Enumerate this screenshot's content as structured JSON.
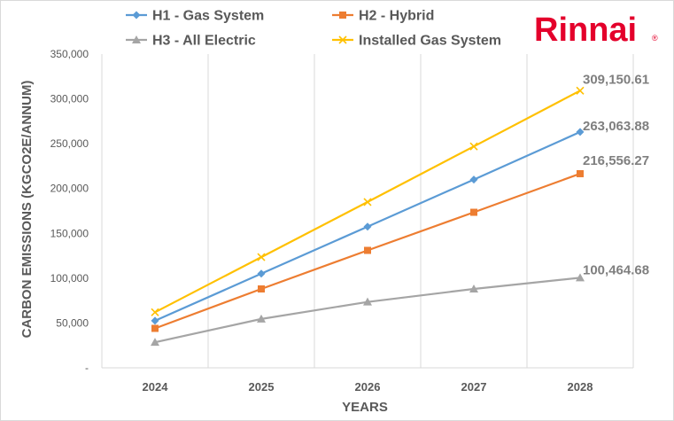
{
  "brand": {
    "logo_text": "Rinnai",
    "logo_mark": "®",
    "color": "#e4002b"
  },
  "chart_data": {
    "type": "line",
    "title": "",
    "xlabel": "YEARS",
    "ylabel": "CARBON EMISSIONS (KGCO2E/ANNUM)",
    "categories": [
      "2024",
      "2025",
      "2026",
      "2027",
      "2028"
    ],
    "ylim": [
      0,
      350000
    ],
    "yticks": [
      0,
      50000,
      100000,
      150000,
      200000,
      250000,
      300000,
      350000
    ],
    "ytick_labels": [
      "-",
      "50,000",
      "100,000",
      "150,000",
      "200,000",
      "250,000",
      "300,000",
      "350,000"
    ],
    "grid": "vertical",
    "legend_position": "top",
    "series": [
      {
        "name": "H1 - Gas System",
        "color": "#5b9bd5",
        "marker": "diamond",
        "values": [
          52500,
          105000,
          157500,
          210000,
          263063.88
        ],
        "end_label": "263,063.88"
      },
      {
        "name": "H2 - Hybrid",
        "color": "#ed7d31",
        "marker": "square",
        "values": [
          44000,
          88000,
          131000,
          173500,
          216556.27
        ],
        "end_label": "216,556.27"
      },
      {
        "name": "H3 - All Electric",
        "color": "#a5a5a5",
        "marker": "triangle",
        "values": [
          28500,
          54500,
          73500,
          88000,
          100464.68
        ],
        "end_label": "100,464.68"
      },
      {
        "name": "Installed Gas System",
        "color": "#ffc000",
        "marker": "x",
        "values": [
          62000,
          123500,
          185000,
          247000,
          309150.61
        ],
        "end_label": "309,150.61"
      }
    ]
  }
}
